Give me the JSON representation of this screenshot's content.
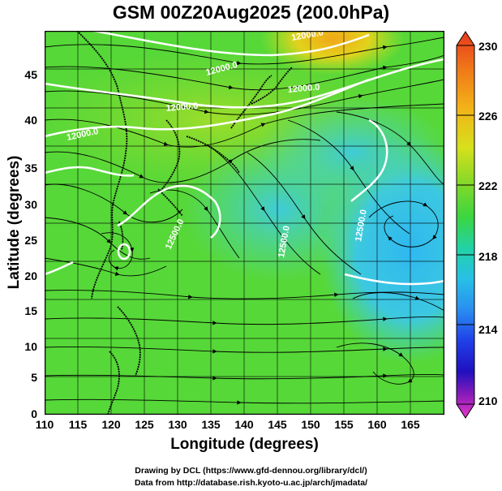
{
  "title": "GSM 00Z20Aug2025 (200.0hPa)",
  "xlabel": "Longitude (degrees)",
  "ylabel": "Latitude (degrees)",
  "x_ticks": [
    "110",
    "115",
    "120",
    "125",
    "130",
    "135",
    "140",
    "145",
    "150",
    "155",
    "160",
    "165"
  ],
  "y_ticks": [
    "0",
    "5",
    "10",
    "15",
    "20",
    "25",
    "30",
    "35",
    "40",
    "45"
  ],
  "colorbar": {
    "ticks": [
      "230",
      "226",
      "222",
      "218",
      "214",
      "210"
    ],
    "min": 210,
    "max": 230
  },
  "contour_labels": [
    "12000.0",
    "12000.0",
    "12000.0",
    "12000.0",
    "12000.0",
    "12500.0",
    "12500.0",
    "12500.0"
  ],
  "credits": {
    "line1": "Drawing by DCL (https://www.gfd-dennou.org/library/dcl/)",
    "line2": "Data from http://database.rish.kyoto-u.ac.jp/arch/jmadata/"
  },
  "chart_data": {
    "type": "heatmap",
    "title": "GSM 00Z20Aug2025 (200.0hPa)",
    "xlabel": "Longitude (degrees)",
    "ylabel": "Latitude (degrees)",
    "xlim": [
      110,
      170
    ],
    "ylim": [
      0,
      50
    ],
    "colorbar_range": [
      210,
      230
    ],
    "overlays": [
      "streamlines",
      "geopotential height contours",
      "coastlines",
      "grid"
    ],
    "grid": true
  },
  "colors": {
    "background": "#ffffff",
    "contour": "#ffffff",
    "coast": "#000000"
  }
}
